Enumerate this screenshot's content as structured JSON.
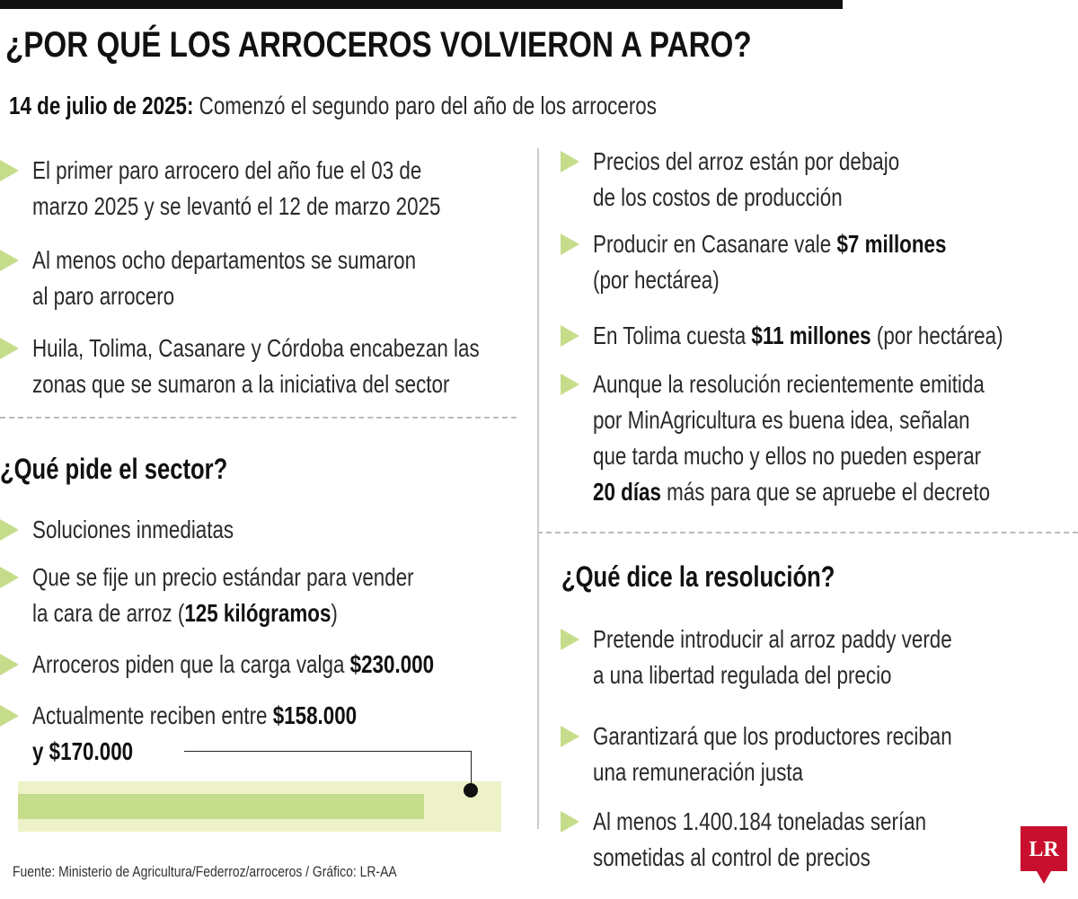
{
  "title": "¿POR QUÉ LOS ARROCEROS VOLVIERON A PARO?",
  "subtitle": {
    "date": "14 de julio de 2025:",
    "text": "Comenzó el segundo paro del año de los arroceros"
  },
  "left_bullets": [
    [
      [
        {
          "text": "El primer paro arrocero del año fue el 03 de"
        }
      ],
      [
        {
          "text": "marzo 2025 y se levantó el 12 de marzo 2025"
        }
      ]
    ],
    [
      [
        {
          "text": "Al menos ocho departamentos se sumaron"
        }
      ],
      [
        {
          "text": "al paro arrocero"
        }
      ]
    ],
    [
      [
        {
          "text": "Huila, Tolima, Casanare y Córdoba encabezan las"
        }
      ],
      [
        {
          "text": "zonas que se sumaron a la iniciativa del sector"
        }
      ]
    ]
  ],
  "demands": {
    "heading": "¿Qué pide el sector?",
    "bullets": [
      [
        [
          {
            "text": "Soluciones inmediatas"
          }
        ]
      ],
      [
        [
          {
            "text": "Que se fije un precio estándar para vender"
          }
        ],
        [
          {
            "text": "la cara de arroz ("
          },
          {
            "text": "125 kilógramos",
            "bold": true
          },
          {
            "text": ")"
          }
        ]
      ],
      [
        [
          {
            "text": "Arroceros piden que la carga valga "
          },
          {
            "text": "$230.000",
            "bold": true
          }
        ]
      ],
      [
        [
          {
            "text": "Actualmente reciben entre "
          },
          {
            "text": "$158.000",
            "bold": true
          }
        ],
        [
          {
            "text": "y $170.000",
            "bold": true
          }
        ]
      ]
    ]
  },
  "right_bullets": [
    [
      [
        {
          "text": "Precios del arroz están por debajo"
        }
      ],
      [
        {
          "text": "de los costos de producción"
        }
      ]
    ],
    [
      [
        {
          "text": "Producir en Casanare vale "
        },
        {
          "text": "$7 millones",
          "bold": true
        }
      ],
      [
        {
          "text": "(por hectárea)"
        }
      ]
    ],
    [
      [
        {
          "text": "En Tolima cuesta "
        },
        {
          "text": "$11 millones",
          "bold": true
        },
        {
          "text": " (por hectárea)"
        }
      ]
    ],
    [
      [
        {
          "text": "Aunque la resolución recientemente emitida"
        }
      ],
      [
        {
          "text": "por MinAgricultura es buena idea, señalan"
        }
      ],
      [
        {
          "text": "que tarda mucho y ellos no pueden esperar"
        }
      ],
      [
        {
          "text": "20 días",
          "bold": true
        },
        {
          "text": " más para que se apruebe el decreto"
        }
      ]
    ]
  ],
  "resolution": {
    "heading": "¿Qué dice la resolución?",
    "bullets": [
      [
        [
          {
            "text": "Pretende introducir al arroz paddy verde"
          }
        ],
        [
          {
            "text": "a una libertad regulada del precio"
          }
        ]
      ],
      [
        [
          {
            "text": "Garantizará que los productores reciban"
          }
        ],
        [
          {
            "text": "una remuneración justa"
          }
        ]
      ],
      [
        [
          {
            "text": "Al menos 1.400.184 toneladas serían"
          }
        ],
        [
          {
            "text": "sometidas al control de precios"
          }
        ]
      ]
    ]
  },
  "source": "Fuente: Ministerio de Agricultura/Federroz/arroceros / Gráfico: LR-AA",
  "logo": "LR"
}
